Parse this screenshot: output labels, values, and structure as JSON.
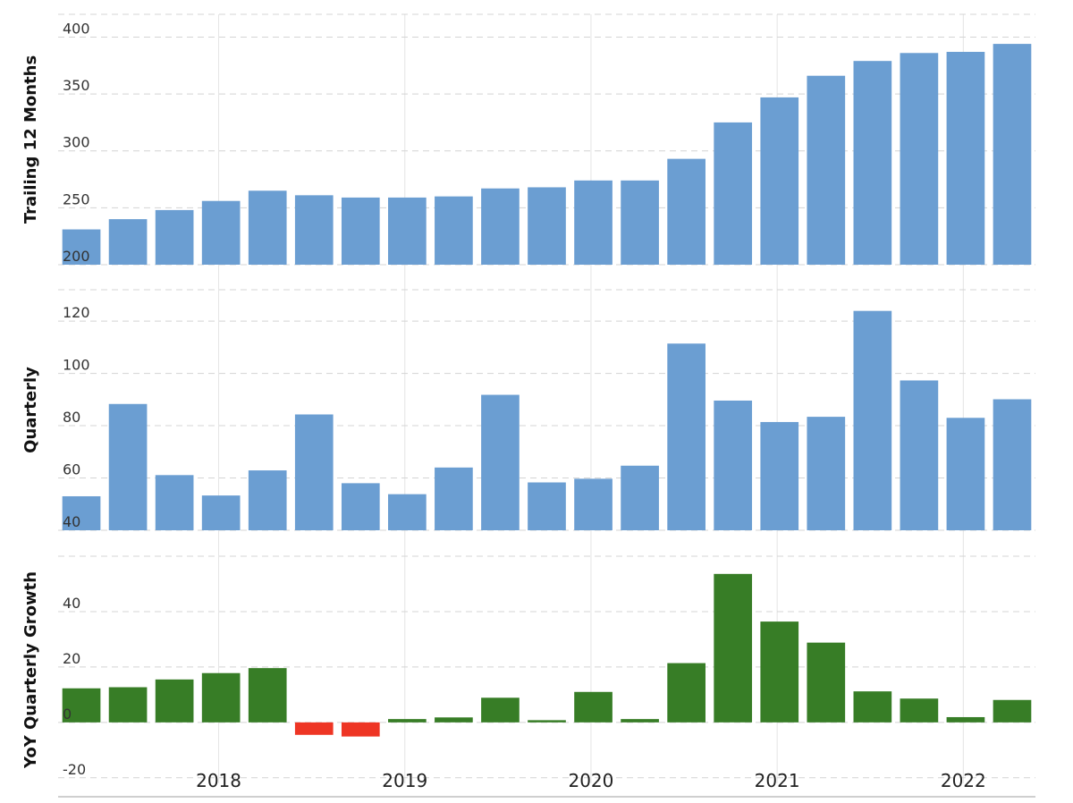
{
  "chart_data": [
    {
      "type": "bar",
      "ylabel": "Trailing 12 Months",
      "ylim": [
        200,
        420
      ],
      "yticks": [
        200,
        250,
        300,
        350,
        400
      ],
      "grid": true,
      "colors": {
        "positive": "#6b9ed2",
        "negative": "#6b9ed2"
      },
      "values": [
        231,
        240,
        248,
        256,
        265,
        261,
        259,
        259,
        260,
        267,
        268,
        274,
        274,
        293,
        325,
        347,
        366,
        379,
        386,
        387,
        394
      ]
    },
    {
      "type": "bar",
      "ylabel": "Quarterly",
      "ylim": [
        40,
        132
      ],
      "yticks": [
        40,
        60,
        80,
        100,
        120
      ],
      "grid": true,
      "colors": {
        "positive": "#6b9ed2",
        "negative": "#6b9ed2"
      },
      "values": [
        53,
        88.3,
        61.1,
        53.3,
        62.9,
        84.3,
        58,
        53.8,
        64,
        91.8,
        58.3,
        59.7,
        64.7,
        111.4,
        89.6,
        81.4,
        83.4,
        123.9,
        97.3,
        83,
        90.1
      ]
    },
    {
      "type": "bar",
      "ylabel": "YoY Quarterly Growth",
      "ylim": [
        -22,
        60
      ],
      "yticks": [
        -20,
        0,
        20,
        40
      ],
      "grid": true,
      "colors": {
        "positive": "#377d26",
        "negative": "#ee3524"
      },
      "values": [
        12.3,
        12.7,
        15.5,
        17.8,
        19.6,
        -4.5,
        -5.1,
        1.2,
        1.8,
        8.9,
        0.8,
        11,
        1.2,
        21.4,
        53.6,
        36.4,
        28.8,
        11.2,
        8.6,
        1.9,
        8.1
      ]
    }
  ],
  "x_axis": {
    "years": [
      "2018",
      "2019",
      "2020",
      "2021",
      "2022"
    ],
    "year_positions": [
      3.45,
      7.45,
      11.45,
      15.45,
      19.45
    ]
  }
}
